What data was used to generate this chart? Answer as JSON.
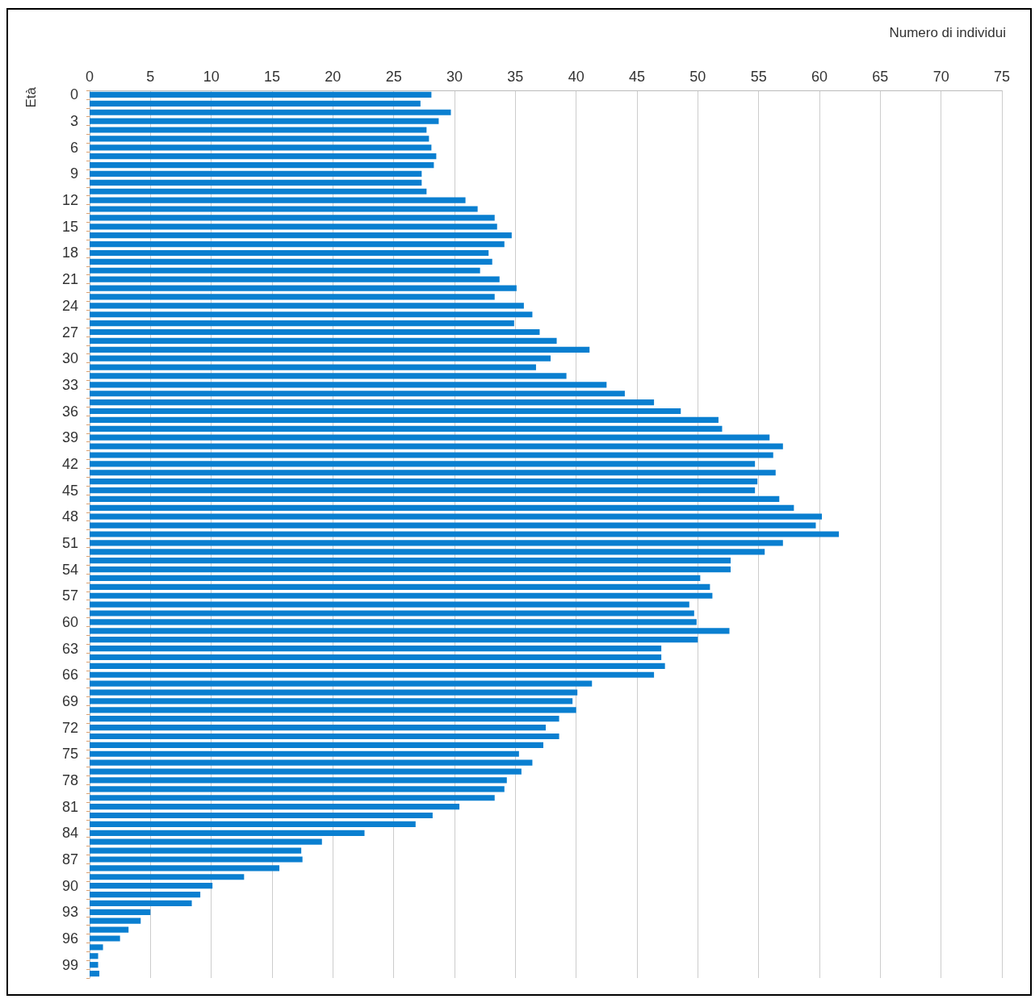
{
  "chart_data": {
    "type": "bar",
    "orientation": "horizontal",
    "xlabel": "Numero di individui",
    "ylabel": "Età",
    "categories": [
      "0",
      null,
      null,
      "3",
      null,
      null,
      "6",
      null,
      null,
      "9",
      null,
      null,
      "12",
      null,
      null,
      "15",
      null,
      null,
      "18",
      null,
      null,
      "21",
      null,
      null,
      "24",
      null,
      null,
      "27",
      null,
      null,
      "30",
      null,
      null,
      "33",
      null,
      null,
      "36",
      null,
      null,
      "39",
      null,
      null,
      "42",
      null,
      null,
      "45",
      null,
      null,
      "48",
      null,
      null,
      "51",
      null,
      null,
      "54",
      null,
      null,
      "57",
      null,
      null,
      "60",
      null,
      null,
      "63",
      null,
      null,
      "66",
      null,
      null,
      "69",
      null,
      null,
      "72",
      null,
      null,
      "75",
      null,
      null,
      "78",
      null,
      null,
      "81",
      null,
      null,
      "84",
      null,
      null,
      "87",
      null,
      null,
      "90",
      null,
      null,
      "93",
      null,
      null,
      "96",
      null,
      null,
      "99",
      null
    ],
    "values": [
      28.1,
      27.2,
      29.7,
      28.7,
      27.7,
      27.9,
      28.1,
      28.5,
      28.3,
      27.3,
      27.3,
      27.7,
      30.9,
      31.9,
      33.3,
      33.5,
      34.7,
      34.1,
      32.8,
      33.1,
      32.1,
      33.7,
      35.1,
      33.3,
      35.7,
      36.4,
      34.9,
      37.0,
      38.4,
      41.1,
      37.9,
      36.7,
      39.2,
      42.5,
      44.0,
      46.4,
      48.6,
      51.7,
      52.0,
      55.9,
      57.0,
      56.2,
      54.7,
      56.4,
      54.9,
      54.7,
      56.7,
      57.9,
      60.2,
      59.7,
      61.6,
      57.0,
      55.5,
      52.7,
      52.7,
      50.2,
      51.0,
      51.2,
      49.3,
      49.7,
      49.9,
      52.6,
      50.0,
      47.0,
      47.0,
      47.3,
      46.4,
      41.3,
      40.1,
      39.7,
      40.0,
      38.6,
      37.5,
      38.6,
      37.3,
      35.3,
      36.4,
      35.5,
      34.3,
      34.1,
      33.3,
      30.4,
      28.2,
      26.8,
      22.6,
      19.1,
      17.4,
      17.5,
      15.6,
      12.7,
      10.1,
      9.1,
      8.4,
      5.0,
      4.2,
      3.2,
      2.5,
      1.1,
      0.7,
      0.7,
      0.8
    ],
    "color": "#0a7fd0",
    "xlim": [
      0,
      75
    ],
    "xticks": [
      0,
      5,
      10,
      15,
      20,
      25,
      30,
      35,
      40,
      45,
      50,
      55,
      60,
      65,
      70,
      75
    ],
    "grid": "x"
  }
}
